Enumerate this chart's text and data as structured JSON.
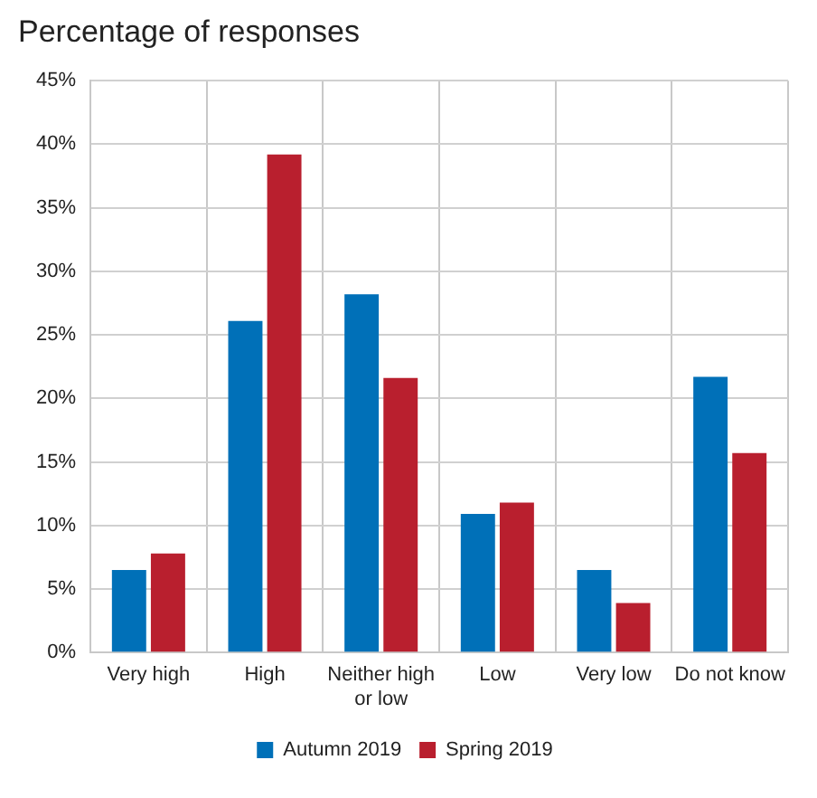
{
  "chart_data": {
    "type": "bar",
    "title": "Percentage of responses",
    "categories": [
      "Very high",
      "High",
      "Neither high or low",
      "Low",
      "Very low",
      "Do not know"
    ],
    "series": [
      {
        "name": "Autumn 2019",
        "color": "#0070b8",
        "values": [
          6.5,
          26.1,
          28.2,
          10.9,
          6.5,
          21.7
        ]
      },
      {
        "name": "Spring 2019",
        "color": "#b91f2e",
        "values": [
          7.8,
          39.2,
          21.6,
          11.8,
          3.9,
          15.7
        ]
      }
    ],
    "ylim": [
      0,
      45
    ],
    "yticks": [
      {
        "value": 0,
        "label": "0%"
      },
      {
        "value": 5,
        "label": "5%"
      },
      {
        "value": 10,
        "label": "10%"
      },
      {
        "value": 15,
        "label": "15%"
      },
      {
        "value": 20,
        "label": "20%"
      },
      {
        "value": 25,
        "label": "25%"
      },
      {
        "value": 30,
        "label": "30%"
      },
      {
        "value": 35,
        "label": "35%"
      },
      {
        "value": 40,
        "label": "40%"
      },
      {
        "value": 45,
        "label": "45%"
      }
    ],
    "grid": true,
    "legend": "bottom"
  }
}
